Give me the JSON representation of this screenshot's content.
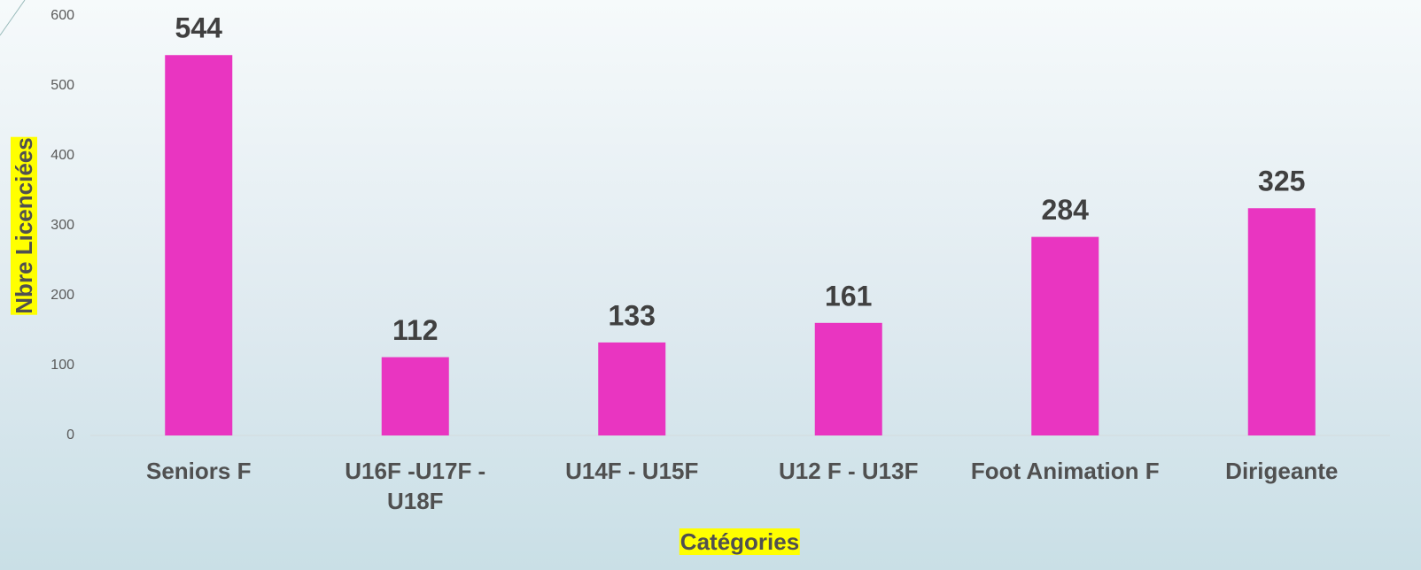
{
  "chart_data": {
    "type": "bar",
    "x_label": "Catégories",
    "y_label": "Nbre Licenciées",
    "categories": [
      "Seniors F",
      "U16F -U17F - U18F",
      "U14F - U15F",
      "U12 F - U13F",
      "Foot Animation F",
      "Dirigeante"
    ],
    "values": [
      544,
      112,
      133,
      161,
      284,
      325
    ],
    "color": "#e935c1",
    "ylim": [
      0,
      600
    ],
    "yticks": [
      0,
      100,
      200,
      300,
      400,
      500,
      600
    ],
    "grid": false
  }
}
